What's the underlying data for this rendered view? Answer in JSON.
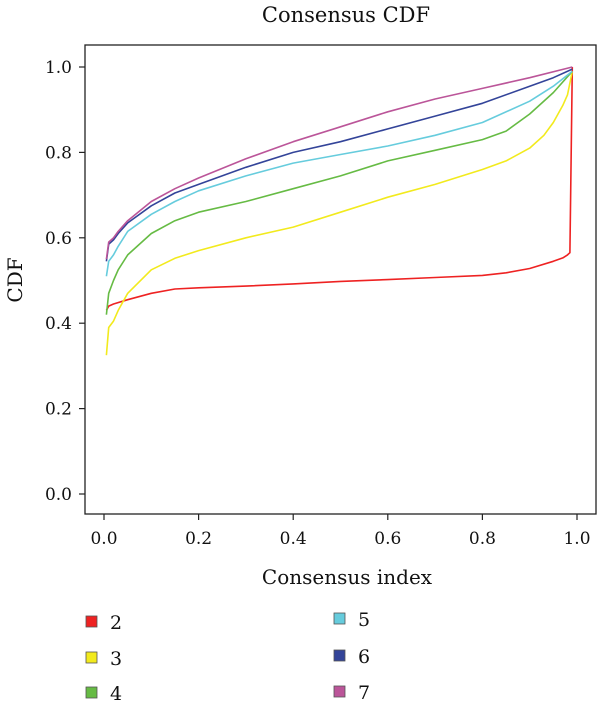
{
  "chart_data": {
    "type": "line",
    "title": "Consensus CDF",
    "xlabel": "Consensus index",
    "ylabel": "CDF",
    "xlim": [
      0.0,
      1.0
    ],
    "ylim": [
      0.0,
      1.0
    ],
    "xticks": [
      "0.0",
      "0.2",
      "0.4",
      "0.6",
      "0.8",
      "1.0"
    ],
    "yticks": [
      "0.0",
      "0.2",
      "0.4",
      "0.6",
      "0.8",
      "1.0"
    ],
    "grid": false,
    "legend": "bottom, two columns",
    "series": [
      {
        "name": "2",
        "color": "#ee2222",
        "x": [
          0.005,
          0.01,
          0.02,
          0.05,
          0.1,
          0.15,
          0.2,
          0.3,
          0.4,
          0.5,
          0.6,
          0.7,
          0.8,
          0.85,
          0.9,
          0.95,
          0.97,
          0.98,
          0.985,
          0.99
        ],
        "y": [
          0.43,
          0.44,
          0.445,
          0.455,
          0.47,
          0.48,
          0.483,
          0.487,
          0.492,
          0.498,
          0.502,
          0.507,
          0.512,
          0.518,
          0.528,
          0.545,
          0.553,
          0.56,
          0.565,
          1.0
        ]
      },
      {
        "name": "3",
        "color": "#f2ea1d",
        "x": [
          0.005,
          0.01,
          0.02,
          0.03,
          0.05,
          0.1,
          0.15,
          0.2,
          0.3,
          0.4,
          0.5,
          0.6,
          0.7,
          0.8,
          0.85,
          0.9,
          0.93,
          0.95,
          0.97,
          0.98,
          0.99
        ],
        "y": [
          0.325,
          0.39,
          0.405,
          0.43,
          0.47,
          0.525,
          0.552,
          0.57,
          0.6,
          0.625,
          0.66,
          0.695,
          0.725,
          0.76,
          0.78,
          0.81,
          0.84,
          0.87,
          0.91,
          0.935,
          0.99
        ]
      },
      {
        "name": "4",
        "color": "#66bb44",
        "x": [
          0.005,
          0.01,
          0.02,
          0.03,
          0.05,
          0.1,
          0.15,
          0.2,
          0.3,
          0.4,
          0.5,
          0.6,
          0.7,
          0.8,
          0.85,
          0.9,
          0.95,
          0.99
        ],
        "y": [
          0.42,
          0.47,
          0.5,
          0.525,
          0.56,
          0.61,
          0.64,
          0.66,
          0.685,
          0.715,
          0.745,
          0.78,
          0.805,
          0.83,
          0.85,
          0.89,
          0.94,
          0.99
        ]
      },
      {
        "name": "5",
        "color": "#66ccdd",
        "x": [
          0.005,
          0.01,
          0.02,
          0.03,
          0.05,
          0.1,
          0.15,
          0.2,
          0.3,
          0.4,
          0.5,
          0.6,
          0.7,
          0.8,
          0.9,
          0.95,
          0.99
        ],
        "y": [
          0.51,
          0.545,
          0.56,
          0.58,
          0.615,
          0.655,
          0.685,
          0.71,
          0.745,
          0.775,
          0.795,
          0.815,
          0.84,
          0.87,
          0.92,
          0.955,
          0.99
        ]
      },
      {
        "name": "6",
        "color": "#334499",
        "x": [
          0.005,
          0.01,
          0.02,
          0.03,
          0.05,
          0.1,
          0.15,
          0.2,
          0.3,
          0.4,
          0.5,
          0.6,
          0.7,
          0.8,
          0.9,
          0.95,
          0.99
        ],
        "y": [
          0.545,
          0.585,
          0.595,
          0.61,
          0.635,
          0.675,
          0.705,
          0.725,
          0.765,
          0.8,
          0.825,
          0.855,
          0.885,
          0.915,
          0.955,
          0.975,
          0.995
        ]
      },
      {
        "name": "7",
        "color": "#bb5599",
        "x": [
          0.005,
          0.01,
          0.02,
          0.03,
          0.05,
          0.1,
          0.15,
          0.2,
          0.3,
          0.4,
          0.5,
          0.6,
          0.7,
          0.8,
          0.9,
          0.99
        ],
        "y": [
          0.55,
          0.59,
          0.6,
          0.615,
          0.64,
          0.685,
          0.715,
          0.74,
          0.785,
          0.825,
          0.86,
          0.895,
          0.925,
          0.95,
          0.975,
          1.0
        ]
      }
    ]
  }
}
